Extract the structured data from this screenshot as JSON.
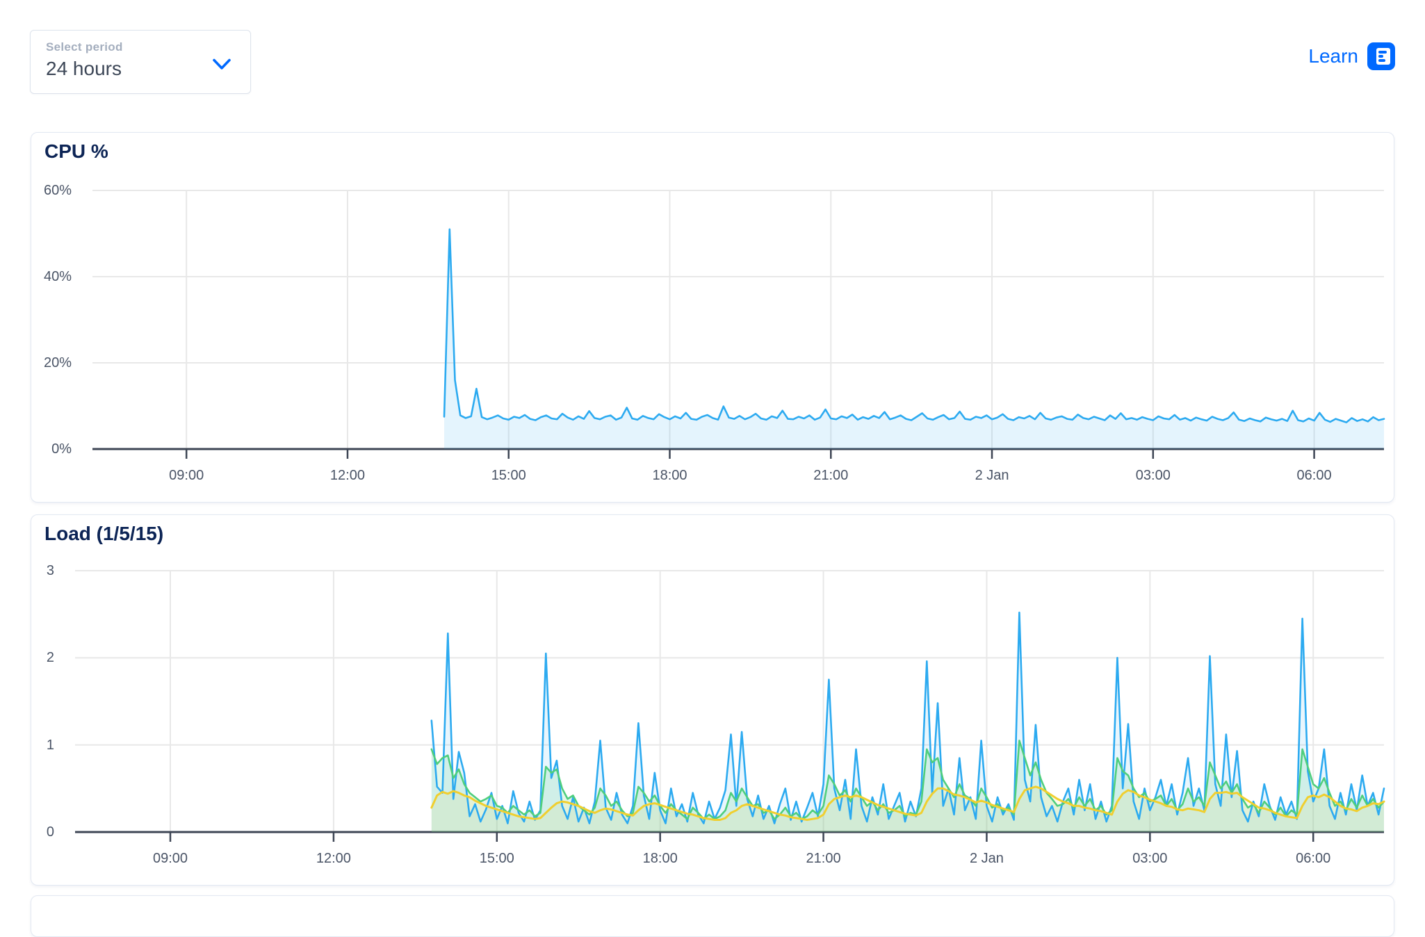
{
  "controls": {
    "period_label": "Select period",
    "period_value": "24 hours",
    "learn_label": "Learn"
  },
  "colors": {
    "accent_blue": "#0069ff",
    "title_navy": "#0c2455",
    "axis_text": "#4a5466",
    "grid": "#e8e8e8",
    "axis_line": "#3d4554",
    "cpu_line": "#2CAAF0",
    "load1_line": "#2CAAF0",
    "load5_line": "#4FCE7D",
    "load15_line": "#F0CF2F"
  },
  "chart_data": [
    {
      "type": "area",
      "title": "CPU %",
      "xlabel": "",
      "ylabel": "",
      "ylim": [
        0,
        60
      ],
      "x_domain_hours": [
        7.25,
        31.3
      ],
      "grid": true,
      "yticks": [
        {
          "label": "60%",
          "value": 60
        },
        {
          "label": "40%",
          "value": 40
        },
        {
          "label": "20%",
          "value": 20
        },
        {
          "label": "0%",
          "value": 0
        }
      ],
      "xticks": [
        {
          "label": "09:00",
          "t": 9
        },
        {
          "label": "12:00",
          "t": 12
        },
        {
          "label": "15:00",
          "t": 15
        },
        {
          "label": "18:00",
          "t": 18
        },
        {
          "label": "21:00",
          "t": 21
        },
        {
          "label": "2 Jan",
          "t": 24
        },
        {
          "label": "03:00",
          "t": 27
        },
        {
          "label": "06:00",
          "t": 30
        }
      ],
      "series": [
        {
          "name": "cpu",
          "color": "#2CAAF0",
          "fill_opacity": 0.13,
          "t0": 13.8,
          "dt": 0.1,
          "values": [
            7.5,
            51,
            16,
            7.8,
            7.2,
            7.6,
            14,
            7.4,
            6.9,
            7.3,
            7.8,
            7.1,
            6.8,
            7.5,
            7.2,
            7.9,
            7.0,
            6.7,
            7.4,
            7.8,
            7.1,
            6.9,
            8.2,
            7.3,
            6.8,
            7.6,
            7.0,
            8.8,
            7.2,
            6.9,
            7.5,
            7.8,
            6.8,
            7.3,
            9.6,
            7.1,
            6.8,
            7.7,
            7.2,
            6.9,
            8.1,
            7.4,
            6.9,
            7.6,
            7.1,
            8.4,
            7.0,
            6.8,
            7.5,
            7.9,
            7.2,
            6.8,
            9.9,
            7.3,
            7.0,
            7.7,
            6.9,
            7.4,
            8.2,
            7.1,
            6.8,
            7.6,
            7.2,
            8.9,
            7.0,
            6.9,
            7.5,
            7.1,
            7.8,
            6.8,
            7.3,
            9.2,
            7.1,
            6.9,
            7.6,
            7.2,
            8.0,
            6.8,
            7.4,
            7.0,
            7.7,
            7.2,
            8.6,
            6.9,
            7.3,
            7.8,
            7.0,
            6.7,
            7.5,
            8.3,
            7.1,
            6.8,
            7.4,
            7.9,
            6.9,
            7.2,
            8.7,
            7.0,
            6.8,
            7.5,
            7.2,
            7.8,
            6.9,
            7.3,
            8.1,
            7.0,
            6.7,
            7.4,
            7.1,
            7.7,
            6.9,
            8.4,
            7.1,
            6.8,
            7.3,
            7.6,
            7.0,
            6.8,
            8.0,
            7.2,
            6.9,
            7.5,
            7.1,
            6.7,
            7.8,
            7.0,
            8.3,
            6.9,
            7.2,
            6.8,
            7.4,
            7.0,
            6.7,
            7.6,
            7.1,
            6.9,
            7.9,
            6.8,
            7.2,
            6.6,
            7.3,
            6.9,
            6.6,
            7.5,
            7.0,
            6.7,
            7.2,
            8.5,
            6.8,
            6.5,
            7.1,
            6.7,
            6.4,
            7.3,
            6.9,
            6.6,
            7.0,
            6.5,
            8.9,
            6.7,
            6.4,
            7.1,
            6.6,
            8.4,
            6.8,
            6.3,
            7.0,
            6.6,
            6.2,
            7.2,
            6.5,
            6.9,
            6.4,
            7.4,
            6.7,
            7.0
          ]
        }
      ]
    },
    {
      "type": "area",
      "title": "Load (1/5/15)",
      "xlabel": "",
      "ylabel": "",
      "ylim": [
        0,
        3
      ],
      "x_domain_hours": [
        7.25,
        31.3
      ],
      "grid": true,
      "yticks": [
        {
          "label": "3",
          "value": 3
        },
        {
          "label": "2",
          "value": 2
        },
        {
          "label": "1",
          "value": 1
        },
        {
          "label": "0",
          "value": 0
        }
      ],
      "xticks": [
        {
          "label": "09:00",
          "t": 9
        },
        {
          "label": "12:00",
          "t": 12
        },
        {
          "label": "15:00",
          "t": 15
        },
        {
          "label": "18:00",
          "t": 18
        },
        {
          "label": "21:00",
          "t": 21
        },
        {
          "label": "2 Jan",
          "t": 24
        },
        {
          "label": "03:00",
          "t": 27
        },
        {
          "label": "06:00",
          "t": 30
        }
      ],
      "series": [
        {
          "name": "load1",
          "color": "#2CAAF0",
          "fill_opacity": 0.1,
          "t0": 13.8,
          "dt": 0.1,
          "values": [
            1.28,
            0.52,
            0.45,
            2.28,
            0.38,
            0.92,
            0.68,
            0.18,
            0.32,
            0.12,
            0.26,
            0.45,
            0.15,
            0.3,
            0.1,
            0.47,
            0.22,
            0.12,
            0.35,
            0.14,
            0.25,
            2.05,
            0.62,
            0.82,
            0.3,
            0.15,
            0.4,
            0.12,
            0.28,
            0.1,
            0.35,
            1.05,
            0.28,
            0.14,
            0.45,
            0.2,
            0.1,
            0.3,
            1.25,
            0.42,
            0.15,
            0.68,
            0.25,
            0.1,
            0.5,
            0.18,
            0.32,
            0.12,
            0.45,
            0.2,
            0.1,
            0.35,
            0.15,
            0.28,
            0.48,
            1.12,
            0.3,
            1.15,
            0.38,
            0.18,
            0.42,
            0.15,
            0.3,
            0.1,
            0.32,
            0.5,
            0.14,
            0.35,
            0.12,
            0.28,
            0.45,
            0.18,
            0.55,
            1.75,
            0.5,
            0.25,
            0.6,
            0.15,
            0.95,
            0.3,
            0.12,
            0.4,
            0.2,
            0.55,
            0.15,
            0.3,
            0.45,
            0.12,
            0.35,
            0.18,
            0.5,
            1.96,
            0.45,
            1.48,
            0.3,
            0.5,
            0.2,
            0.85,
            0.25,
            0.4,
            0.15,
            1.05,
            0.3,
            0.12,
            0.4,
            0.2,
            0.32,
            0.14,
            2.52,
            0.6,
            0.35,
            1.23,
            0.4,
            0.18,
            0.3,
            0.12,
            0.35,
            0.5,
            0.2,
            0.6,
            0.25,
            0.55,
            0.15,
            0.35,
            0.12,
            0.3,
            2.0,
            0.5,
            1.24,
            0.35,
            0.15,
            0.5,
            0.25,
            0.4,
            0.6,
            0.3,
            0.55,
            0.2,
            0.45,
            0.85,
            0.3,
            0.5,
            0.25,
            2.02,
            0.55,
            0.3,
            1.12,
            0.4,
            0.93,
            0.25,
            0.12,
            0.35,
            0.18,
            0.55,
            0.3,
            0.14,
            0.4,
            0.2,
            0.35,
            0.15,
            2.45,
            0.7,
            0.35,
            0.5,
            0.95,
            0.3,
            0.15,
            0.45,
            0.2,
            0.55,
            0.25,
            0.65,
            0.3,
            0.45,
            0.2,
            0.5
          ]
        },
        {
          "name": "load5",
          "color": "#4FCE7D",
          "fill_opacity": 0.16,
          "t0": 13.8,
          "dt": 0.1,
          "values": [
            0.95,
            0.78,
            0.85,
            0.88,
            0.62,
            0.72,
            0.55,
            0.45,
            0.4,
            0.35,
            0.38,
            0.42,
            0.3,
            0.28,
            0.22,
            0.3,
            0.25,
            0.2,
            0.25,
            0.18,
            0.22,
            0.75,
            0.68,
            0.72,
            0.5,
            0.38,
            0.42,
            0.3,
            0.25,
            0.2,
            0.28,
            0.5,
            0.42,
            0.3,
            0.35,
            0.25,
            0.18,
            0.22,
            0.52,
            0.45,
            0.35,
            0.42,
            0.3,
            0.22,
            0.32,
            0.25,
            0.2,
            0.15,
            0.28,
            0.22,
            0.15,
            0.2,
            0.15,
            0.18,
            0.25,
            0.45,
            0.35,
            0.5,
            0.4,
            0.3,
            0.32,
            0.22,
            0.25,
            0.15,
            0.2,
            0.28,
            0.18,
            0.22,
            0.15,
            0.18,
            0.25,
            0.2,
            0.3,
            0.65,
            0.55,
            0.42,
            0.48,
            0.35,
            0.5,
            0.4,
            0.3,
            0.35,
            0.25,
            0.32,
            0.22,
            0.25,
            0.3,
            0.18,
            0.22,
            0.2,
            0.35,
            0.95,
            0.8,
            0.85,
            0.6,
            0.5,
            0.4,
            0.55,
            0.42,
            0.38,
            0.3,
            0.5,
            0.4,
            0.28,
            0.32,
            0.24,
            0.28,
            0.2,
            1.05,
            0.85,
            0.65,
            0.8,
            0.6,
            0.45,
            0.38,
            0.3,
            0.32,
            0.38,
            0.28,
            0.4,
            0.3,
            0.38,
            0.25,
            0.3,
            0.2,
            0.25,
            0.85,
            0.7,
            0.65,
            0.5,
            0.4,
            0.45,
            0.35,
            0.38,
            0.42,
            0.3,
            0.38,
            0.25,
            0.32,
            0.5,
            0.35,
            0.4,
            0.3,
            0.8,
            0.65,
            0.5,
            0.58,
            0.45,
            0.55,
            0.38,
            0.28,
            0.32,
            0.22,
            0.35,
            0.28,
            0.2,
            0.28,
            0.18,
            0.25,
            0.2,
            0.95,
            0.75,
            0.55,
            0.5,
            0.62,
            0.45,
            0.3,
            0.35,
            0.25,
            0.38,
            0.28,
            0.42,
            0.3,
            0.38,
            0.28,
            0.35
          ]
        },
        {
          "name": "load15",
          "color": "#F0CF2F",
          "fill_opacity": 0.1,
          "t0": 13.8,
          "dt": 0.1,
          "values": [
            0.28,
            0.42,
            0.46,
            0.44,
            0.47,
            0.45,
            0.42,
            0.4,
            0.36,
            0.33,
            0.3,
            0.28,
            0.26,
            0.24,
            0.22,
            0.2,
            0.18,
            0.17,
            0.16,
            0.15,
            0.16,
            0.22,
            0.28,
            0.33,
            0.35,
            0.34,
            0.32,
            0.3,
            0.27,
            0.24,
            0.22,
            0.25,
            0.27,
            0.26,
            0.24,
            0.22,
            0.2,
            0.19,
            0.25,
            0.3,
            0.32,
            0.33,
            0.31,
            0.29,
            0.27,
            0.25,
            0.23,
            0.21,
            0.2,
            0.18,
            0.16,
            0.15,
            0.14,
            0.14,
            0.16,
            0.22,
            0.25,
            0.3,
            0.32,
            0.3,
            0.28,
            0.26,
            0.24,
            0.22,
            0.2,
            0.19,
            0.17,
            0.16,
            0.15,
            0.14,
            0.15,
            0.16,
            0.2,
            0.32,
            0.38,
            0.4,
            0.42,
            0.4,
            0.42,
            0.4,
            0.37,
            0.34,
            0.31,
            0.29,
            0.27,
            0.25,
            0.23,
            0.21,
            0.2,
            0.19,
            0.22,
            0.35,
            0.44,
            0.5,
            0.5,
            0.47,
            0.43,
            0.42,
            0.4,
            0.37,
            0.34,
            0.36,
            0.34,
            0.31,
            0.29,
            0.27,
            0.25,
            0.23,
            0.38,
            0.48,
            0.5,
            0.52,
            0.5,
            0.46,
            0.42,
            0.38,
            0.35,
            0.33,
            0.3,
            0.3,
            0.28,
            0.27,
            0.25,
            0.24,
            0.22,
            0.2,
            0.35,
            0.44,
            0.48,
            0.46,
            0.42,
            0.4,
            0.37,
            0.35,
            0.33,
            0.3,
            0.29,
            0.26,
            0.25,
            0.27,
            0.26,
            0.25,
            0.23,
            0.38,
            0.45,
            0.45,
            0.46,
            0.44,
            0.45,
            0.4,
            0.36,
            0.32,
            0.28,
            0.27,
            0.25,
            0.22,
            0.2,
            0.18,
            0.17,
            0.16,
            0.3,
            0.4,
            0.42,
            0.4,
            0.43,
            0.4,
            0.35,
            0.3,
            0.27,
            0.26,
            0.24,
            0.28,
            0.3,
            0.33,
            0.32,
            0.35
          ]
        }
      ]
    }
  ]
}
